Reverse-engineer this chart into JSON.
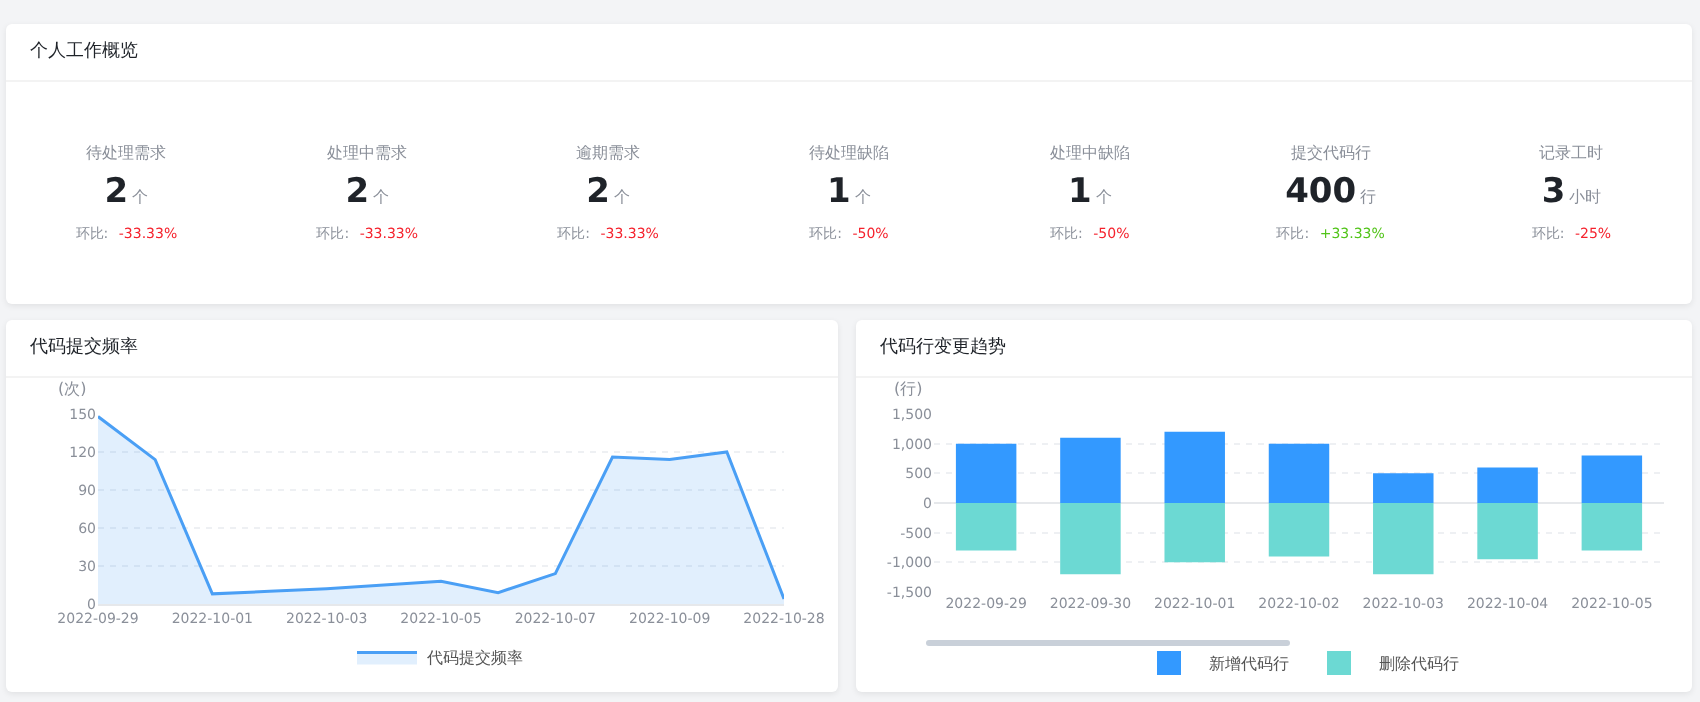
{
  "chart_data": [
    {
      "type": "other",
      "title": "个人工作概览",
      "categories": [
        "待处理需求",
        "处理中需求",
        "逾期需求",
        "待处理缺陷",
        "处理中缺陷",
        "提交代码行",
        "记录工时"
      ],
      "value_labels": [
        "2个",
        "2个",
        "2个",
        "1个",
        "1个",
        "400行",
        "3小时"
      ],
      "annotations": [
        "环比: -33.33%",
        "环比: -33.33%",
        "环比: -33.33%",
        "环比: -50%",
        "环比: -50%",
        "环比: +33.33%",
        "环比: -25%"
      ]
    },
    {
      "type": "area",
      "title": "代码提交频率",
      "ylabel": "(次)",
      "categories": [
        "2022-09-29",
        null,
        "2022-10-01",
        null,
        "2022-10-03",
        null,
        "2022-10-05",
        null,
        "2022-10-07",
        null,
        "2022-10-09",
        null,
        "2022-10-28"
      ],
      "series": [
        {
          "name": "代码提交频率",
          "color": "#4a9ff5",
          "values": [
            148,
            114,
            8,
            10,
            12,
            15,
            18,
            9,
            24,
            116,
            114,
            120,
            4
          ]
        }
      ],
      "ylim": [
        0,
        150
      ],
      "yticks": [
        0,
        30,
        60,
        90,
        120,
        150
      ],
      "grid": "y",
      "legend": "bottom",
      "marker": "none"
    },
    {
      "type": "bar",
      "title": "代码行变更趋势",
      "ylabel": "(行)",
      "stacked": true,
      "categories": [
        "2022-09-29",
        "2022-09-30",
        "2022-10-01",
        "2022-10-02",
        "2022-10-03",
        "2022-10-04",
        "2022-10-05"
      ],
      "series": [
        {
          "name": "新增代码行",
          "color": "#3399ff",
          "values": [
            1000,
            1100,
            1200,
            1000,
            500,
            600,
            800
          ]
        },
        {
          "name": "删除代码行",
          "color": "#6cd9d3",
          "values": [
            -800,
            -1200,
            -1000,
            -900,
            -1200,
            -950,
            -800
          ]
        }
      ],
      "ylim": [
        -1500,
        1500
      ],
      "yticks": [
        {
          "value": -1500,
          "label": "-1,500"
        },
        {
          "value": -1000,
          "label": "-1,000"
        },
        -500,
        0,
        500,
        {
          "value": 1000,
          "label": "1,000"
        },
        {
          "value": 1500,
          "label": "1,500"
        }
      ],
      "grid": "y",
      "legend": "bottom"
    }
  ]
}
